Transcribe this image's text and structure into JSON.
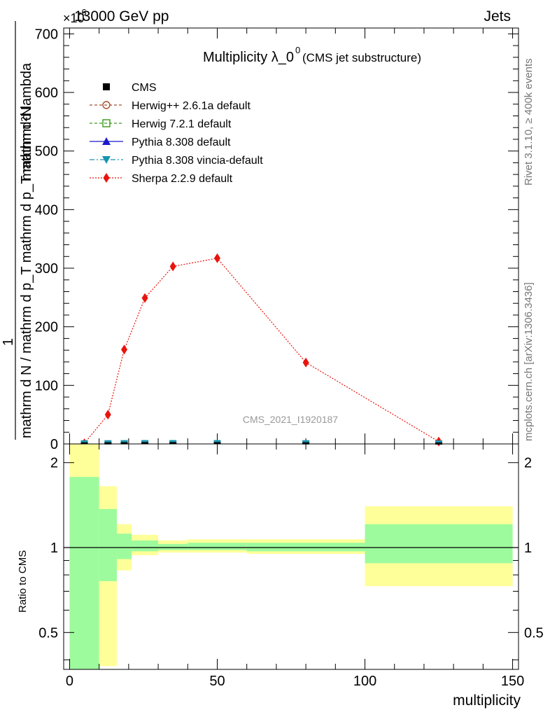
{
  "header": {
    "energy_label": "13000 GeV pp",
    "process_label": "Jets",
    "scale_label": "×10",
    "scale_exponent": "-6"
  },
  "side_labels": {
    "rivet": "Rivet 3.1.10, ≥ 400k events",
    "mcplots": "mcplots.cern.ch [arXiv:1306.3436]"
  },
  "chart_data": {
    "type": "line",
    "title": "Multiplicity λ_0",
    "title_superscript": "0",
    "subtitle": "(CMS jet substructure)",
    "watermark": "CMS_2021_I1920187",
    "xlabel": "multiplicity",
    "ylabel_numerator": "mathrm d²N",
    "ylabel_denominator": "mathrm d N / mathrm d p_T mathrm d p_T mathrm d lambda",
    "ylabel_prefix": "1",
    "ylabel_sub": "T",
    "xlim": [
      -2,
      152
    ],
    "ylim": [
      0,
      710
    ],
    "yticks_major": [
      0,
      100,
      200,
      300,
      400,
      500,
      600,
      700
    ],
    "yticklabels": [
      "0",
      "100",
      "200",
      "300",
      "400",
      "500",
      "600",
      "700"
    ],
    "xticks_major": [
      0,
      50,
      100,
      150
    ],
    "xticklabels": [
      "0",
      "50",
      "100",
      "150"
    ],
    "legend_position": "top-left",
    "legend": [
      {
        "name": "CMS",
        "color": "#000000",
        "marker": "square",
        "line": "none"
      },
      {
        "name": "Herwig++ 2.6.1a default",
        "color": "#a0522d",
        "marker": "open-circle",
        "line": "dashed"
      },
      {
        "name": "Herwig 7.2.1 default",
        "color": "#3a9a1a",
        "marker": "open-square",
        "line": "dashed"
      },
      {
        "name": "Pythia 8.308 default",
        "color": "#1a1acc",
        "marker": "triangle-up",
        "line": "solid"
      },
      {
        "name": "Pythia 8.308 vincia-default",
        "color": "#1a93b0",
        "marker": "triangle-down",
        "line": "dashdot"
      },
      {
        "name": "Sherpa 2.2.9 default",
        "color": "#e8140c",
        "marker": "diamond",
        "line": "dotted"
      }
    ],
    "bins_edges": [
      0,
      10,
      16,
      21,
      30,
      40,
      60,
      100,
      150
    ],
    "series": [
      {
        "name": "Sherpa 2.2.9 default",
        "color": "#e8140c",
        "x": [
          5,
          13,
          18.5,
          25.5,
          35,
          50,
          80,
          125
        ],
        "values": [
          1,
          50,
          161,
          249,
          303,
          317,
          139,
          4
        ]
      },
      {
        "name": "CMS",
        "color": "#000000",
        "x": [
          5,
          13,
          18.5,
          25.5,
          35,
          50,
          80,
          125
        ],
        "values": [
          0.3,
          0.4,
          0.5,
          0.6,
          0.6,
          0.6,
          0.4,
          0.1
        ]
      }
    ],
    "ratio_panel": {
      "ylabel": "Ratio to CMS",
      "ylim": [
        0.37,
        2.33
      ],
      "yticklabels": [
        "0.5",
        "1",
        "2"
      ],
      "yticks_labeled": [
        0.5,
        1,
        2
      ],
      "reference_line": 1,
      "bands": [
        {
          "x0": 0,
          "x1": 10,
          "inner": [
            0.37,
            1.78
          ],
          "outer": [
            0.37,
            2.33
          ]
        },
        {
          "x0": 10,
          "x1": 16,
          "inner": [
            0.76,
            1.37
          ],
          "outer": [
            0.38,
            1.65
          ]
        },
        {
          "x0": 16,
          "x1": 21,
          "inner": [
            0.91,
            1.12
          ],
          "outer": [
            0.83,
            1.21
          ]
        },
        {
          "x0": 21,
          "x1": 30,
          "inner": [
            0.97,
            1.06
          ],
          "outer": [
            0.94,
            1.11
          ]
        },
        {
          "x0": 30,
          "x1": 40,
          "inner": [
            0.98,
            1.03
          ],
          "outer": [
            0.96,
            1.06
          ]
        },
        {
          "x0": 40,
          "x1": 60,
          "inner": [
            0.98,
            1.04
          ],
          "outer": [
            0.96,
            1.07
          ]
        },
        {
          "x0": 60,
          "x1": 100,
          "inner": [
            0.97,
            1.04
          ],
          "outer": [
            0.95,
            1.07
          ]
        },
        {
          "x0": 100,
          "x1": 150,
          "inner": [
            0.88,
            1.21
          ],
          "outer": [
            0.73,
            1.4
          ]
        }
      ]
    }
  },
  "colors": {
    "band_inner": "#9dfb9d",
    "band_outer": "#ffff99",
    "axis": "#000000"
  }
}
